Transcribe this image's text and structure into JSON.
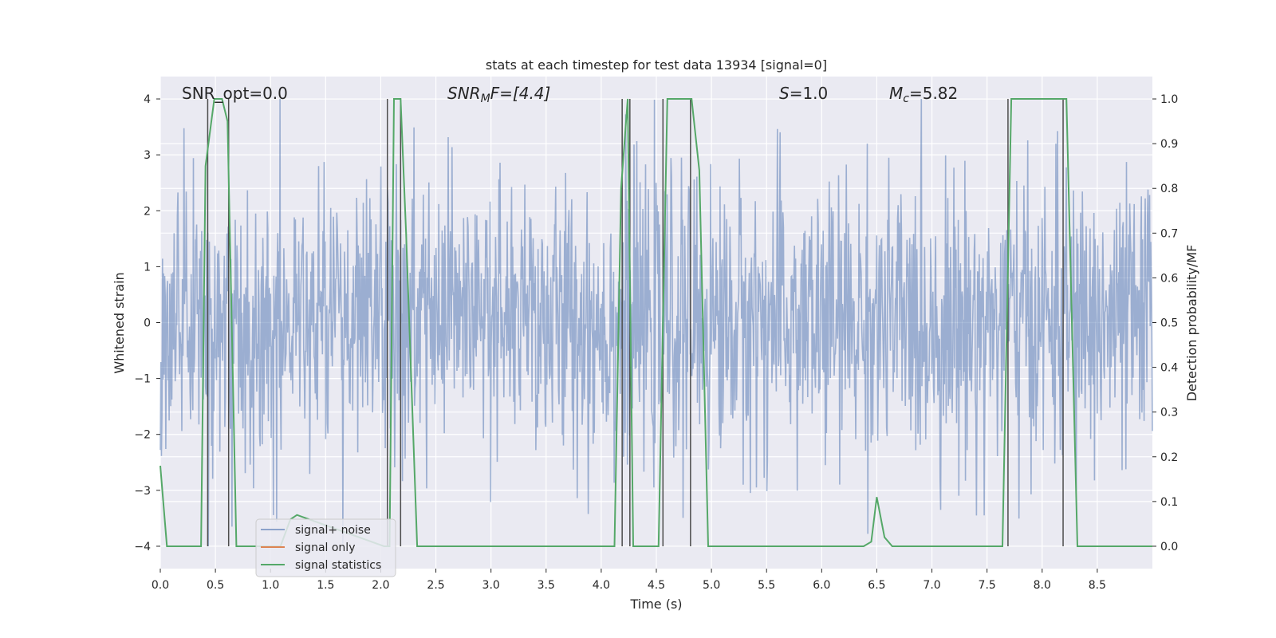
{
  "chart_data": {
    "type": "line",
    "title": "stats at each timestep for test data 13934 [signal=0]",
    "xlabel": "Time (s)",
    "ylabel_left": "Whitened strain",
    "ylabel_right": "Detection probability/MF",
    "xlim": [
      0.0,
      9.0
    ],
    "ylim_left": [
      -4.4,
      4.4
    ],
    "ylim_right": [
      -0.05,
      1.05
    ],
    "xticks": [
      0.0,
      0.5,
      1.0,
      1.5,
      2.0,
      2.5,
      3.0,
      3.5,
      4.0,
      4.5,
      5.0,
      5.5,
      6.0,
      6.5,
      7.0,
      7.5,
      8.0,
      8.5
    ],
    "xtick_labels": [
      "0.0",
      "0.5",
      "1.0",
      "1.5",
      "2.0",
      "2.5",
      "3.0",
      "3.5",
      "4.0",
      "4.5",
      "5.0",
      "5.5",
      "6.0",
      "6.5",
      "7.0",
      "7.5",
      "8.0",
      "8.5"
    ],
    "yticks_left": [
      -4,
      -3,
      -2,
      -1,
      0,
      1,
      2,
      3,
      4
    ],
    "ytick_labels_left": [
      "−4",
      "−3",
      "−2",
      "−1",
      "0",
      "1",
      "2",
      "3",
      "4"
    ],
    "yticks_right": [
      0.0,
      0.1,
      0.2,
      0.3,
      0.4,
      0.5,
      0.6,
      0.7,
      0.8,
      0.9,
      1.0
    ],
    "ytick_labels_right": [
      "0.0",
      "0.1",
      "0.2",
      "0.3",
      "0.4",
      "0.5",
      "0.6",
      "0.7",
      "0.8",
      "0.9",
      "1.0"
    ],
    "annotations": {
      "snr_opt": "SNR_opt=0.0",
      "snr_mf_main": "SNR",
      "snr_mf_sub": "M",
      "snr_mf_rest": "F=[4.4]",
      "s_main": "S",
      "s_rest": "=1.0",
      "mc_main": "M",
      "mc_sub": "c",
      "mc_rest": "=5.82"
    },
    "legend": {
      "location": "lower left",
      "entries": [
        "signal+ noise",
        "signal only",
        "signal statistics"
      ]
    },
    "series": [
      {
        "name": "signal+ noise",
        "color": "#4c72b0",
        "style": "dense noise, amplitude approx ±2 with spikes to ±4",
        "seed": 13934,
        "n_points": 1800,
        "sigma": 1.0
      },
      {
        "name": "signal only",
        "color": "#dd8452",
        "values": []
      },
      {
        "name": "signal statistics",
        "color": "#55a868",
        "x": [
          0.0,
          0.06,
          0.15,
          0.37,
          0.41,
          0.49,
          0.56,
          0.61,
          0.69,
          1.0,
          1.09,
          1.18,
          1.24,
          2.03,
          2.08,
          2.12,
          2.18,
          2.23,
          2.33,
          4.12,
          4.18,
          4.24,
          4.29,
          4.35,
          4.43,
          4.52,
          4.6,
          4.65,
          4.82,
          4.89,
          4.97,
          5.01,
          6.38,
          6.45,
          6.5,
          6.57,
          6.64,
          7.64,
          7.72,
          8.22,
          8.32,
          8.38,
          9.0
        ],
        "y": [
          0.18,
          0.0,
          0.0,
          0.0,
          0.85,
          1.0,
          1.0,
          0.95,
          0.0,
          0.0,
          0.0,
          0.06,
          0.07,
          0.0,
          0.0,
          1.0,
          1.0,
          0.7,
          0.0,
          0.0,
          0.8,
          1.0,
          0.0,
          0.0,
          0.0,
          0.0,
          1.0,
          1.0,
          1.0,
          0.84,
          0.0,
          0.0,
          0.0,
          0.01,
          0.11,
          0.02,
          0.0,
          0.0,
          1.0,
          1.0,
          0.0,
          0.0,
          0.0
        ]
      }
    ],
    "vertical_lines": {
      "color": "#4d4d4d",
      "x": [
        0.43,
        0.62,
        2.06,
        2.18,
        4.19,
        4.26,
        4.56,
        4.81,
        7.69,
        8.19
      ]
    }
  }
}
